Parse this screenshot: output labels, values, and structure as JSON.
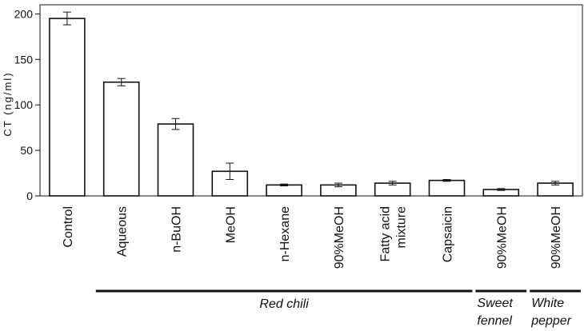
{
  "chart_data": {
    "type": "bar",
    "ylabel": "CT (ng/ml)",
    "ylim": [
      0,
      210
    ],
    "yticks": [
      0,
      50,
      100,
      150,
      200
    ],
    "categories": [
      "Control",
      "Aqueous",
      "n-BuOH",
      "MeOH",
      "n-Hexane",
      "90%MeOH",
      "Fatty acid\nmixture",
      "Capsaicin",
      "90%MeOH",
      "90%MeOH"
    ],
    "values": [
      195,
      125,
      79,
      27,
      12,
      12,
      14,
      17,
      7,
      14
    ],
    "errors": [
      7,
      4,
      6,
      9,
      1,
      2,
      2,
      1,
      1,
      2
    ],
    "groups": [
      {
        "label": "Red chili",
        "from": 1,
        "to": 7
      },
      {
        "label": "Sweet\nfennel",
        "from": 8,
        "to": 8
      },
      {
        "label": "White\npepper",
        "from": 9,
        "to": 9
      }
    ],
    "colors": {
      "bar_fill": "#ffffff",
      "stroke": "#111111"
    }
  }
}
